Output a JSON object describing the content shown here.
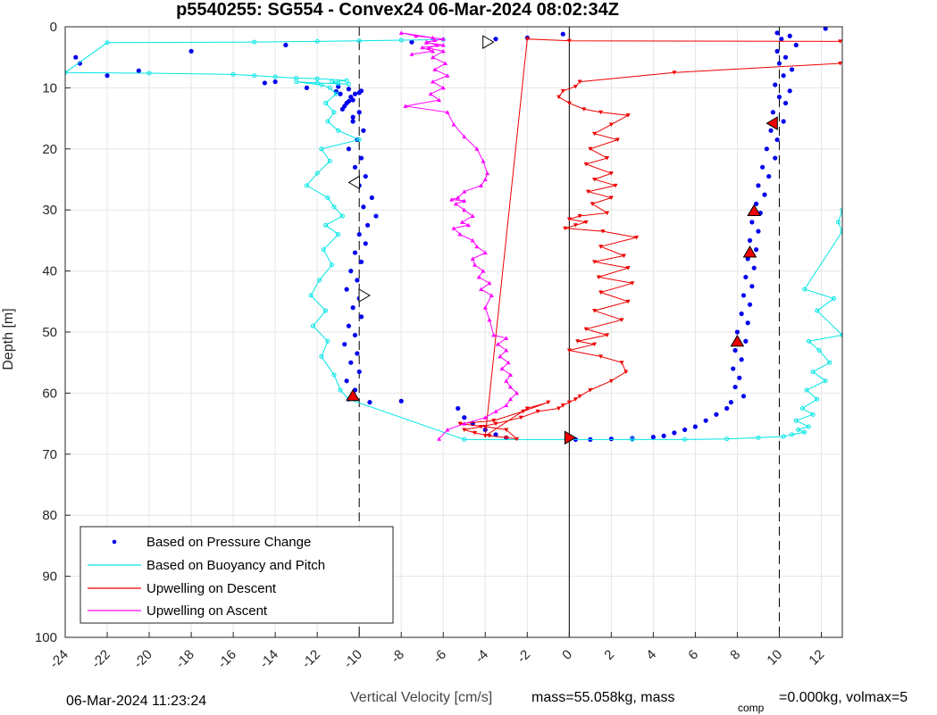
{
  "chart_data": {
    "type": "scatter",
    "title": "p5540255: SG554 - Convex24 06-Mar-2024 08:02:34Z",
    "xlabel": "Vertical Velocity [cm/s]",
    "ylabel": "Depth [m]",
    "xlim": [
      -24,
      13
    ],
    "ylim": [
      0,
      100
    ],
    "y_reversed": true,
    "grid": true,
    "legend_position": "bottom-left",
    "xticks": [
      -24,
      -22,
      -20,
      -18,
      -16,
      -14,
      -12,
      -10,
      -8,
      -6,
      -4,
      -2,
      0,
      2,
      4,
      6,
      8,
      10,
      12
    ],
    "xtick_labels": [
      "-24",
      "-22",
      "-20",
      "-18",
      "-16",
      "-14",
      "-12",
      "-10",
      "-8",
      "-6",
      "-4",
      "-2",
      "0",
      "2",
      "4",
      "6",
      "8",
      "10",
      "12"
    ],
    "yticks": [
      0,
      10,
      20,
      30,
      40,
      50,
      60,
      70,
      80,
      90,
      100
    ],
    "ytick_labels": [
      "0",
      "10",
      "20",
      "30",
      "40",
      "50",
      "60",
      "70",
      "80",
      "90",
      "100"
    ],
    "reference_lines": {
      "dashed_x": [
        -10,
        10
      ],
      "solid_x": [
        0
      ]
    },
    "colors": {
      "pressure": "#0000ee",
      "buoyancy": "#00e5e5",
      "descent": "#ee0000",
      "ascent": "#ff00ff"
    },
    "series": [
      {
        "name": "Based on Pressure Change",
        "style": "dots",
        "x": [
          12.2,
          9.9,
          10.5,
          10.1,
          10.8,
          9.9,
          10.3,
          10.0,
          10.6,
          10.2,
          9.8,
          10.5,
          10.0,
          10.3,
          9.7,
          10.2,
          9.6,
          9.9,
          9.4,
          9.8,
          9.2,
          9.5,
          9.0,
          9.3,
          8.9,
          9.1,
          8.7,
          9.0,
          8.6,
          8.9,
          8.5,
          8.8,
          8.4,
          8.7,
          8.3,
          8.6,
          8.2,
          8.5,
          8.0,
          8.4,
          7.9,
          8.2,
          7.8,
          8.1,
          7.9,
          8.3,
          7.7,
          7.5,
          7.0,
          6.5,
          6.0,
          5.5,
          5.0,
          4.5,
          4.0,
          3.0,
          2.0,
          1.0,
          0.3,
          -5.3,
          -5.0,
          -4.6,
          -4.0,
          -3.5,
          -3.0,
          -10.5,
          -10.2,
          -10.6,
          -10.0,
          -10.4,
          -10.1,
          -10.7,
          -10.2,
          -10.5,
          -9.9,
          -10.3,
          -10.0,
          -10.6,
          -10.1,
          -9.4,
          -9.8,
          -9.2,
          -9.6,
          -10.0,
          -9.7,
          -10.2,
          -9.9,
          -10.4,
          -10.0,
          -9.7,
          -10.2,
          -9.9,
          -10.5,
          -10.1,
          -9.8,
          -10.3,
          -10.0,
          -10.6,
          -10.2,
          -9.9,
          -10.4,
          -10.7,
          -10.3,
          -10.0,
          -10.5,
          -10.9,
          -11.1,
          -10.5,
          -10.8,
          -10.3,
          -11.0,
          -12.5,
          -14.0,
          -14.5,
          -18.0,
          -20.5,
          -23.3,
          -23.5,
          -22.0,
          -13.5,
          -7.5,
          -3.5,
          -2.0,
          -0.3,
          -9.5,
          -8.0
        ],
        "y": [
          0.3,
          1.0,
          1.5,
          2.0,
          3.0,
          4.0,
          5.0,
          6.0,
          7.0,
          8.0,
          9.5,
          10.5,
          11.5,
          12.5,
          14.0,
          15.5,
          17.0,
          18.5,
          20.0,
          21.5,
          23.0,
          24.5,
          26.0,
          27.5,
          29.0,
          30.5,
          32.0,
          33.5,
          35.0,
          36.5,
          38.0,
          39.5,
          41.0,
          42.5,
          44.0,
          45.5,
          47.0,
          48.5,
          50.0,
          51.5,
          53.0,
          54.5,
          56.0,
          57.5,
          59.0,
          60.5,
          61.5,
          62.5,
          63.5,
          64.5,
          65.5,
          66.0,
          66.5,
          67.0,
          67.2,
          67.4,
          67.5,
          67.6,
          67.6,
          62.5,
          64.0,
          65.0,
          66.0,
          66.8,
          67.3,
          61.0,
          59.5,
          58.0,
          56.5,
          55.0,
          53.5,
          52.0,
          50.5,
          49.0,
          47.5,
          46.0,
          44.5,
          43.0,
          41.5,
          28.0,
          29.5,
          31.0,
          32.5,
          34.0,
          35.5,
          37.0,
          38.5,
          40.0,
          26.0,
          24.5,
          23.0,
          21.5,
          20.0,
          18.5,
          17.0,
          15.5,
          14.0,
          12.5,
          11.0,
          10.5,
          11.5,
          13.0,
          12.0,
          10.8,
          10.2,
          11.0,
          10.6,
          12.2,
          13.5,
          14.8,
          9.8,
          10.0,
          9.0,
          9.2,
          4.0,
          7.2,
          6.0,
          5.0,
          8.0,
          3.0,
          2.5,
          2.0,
          1.8,
          1.2,
          61.5,
          61.3
        ]
      },
      {
        "name": "Based on Buoyancy and Pitch",
        "style": "line-circles",
        "x": [
          13.0,
          12.8,
          13.0,
          11.2,
          12.6,
          11.8,
          13.0,
          11.4,
          11.9,
          12.4,
          11.6,
          12.2,
          11.3,
          11.8,
          11.1,
          11.6,
          10.8,
          11.4,
          10.9,
          11.2,
          10.6,
          10.2,
          9.0,
          7.5,
          5.5,
          3.0,
          0.0,
          -5.0,
          -10.5,
          -10.9,
          -11.2,
          -11.8,
          -11.5,
          -12.2,
          -11.6,
          -12.3,
          -11.9,
          -11.3,
          -11.7,
          -11.0,
          -11.6,
          -10.8,
          -11.2,
          -11.5,
          -12.5,
          -12.0,
          -11.4,
          -11.8,
          -10.0,
          -11.0,
          -11.5,
          -11.2,
          -11.6,
          -11.1,
          -11.4,
          -11.8,
          -13.0,
          -12.0,
          -10.5,
          -11.0,
          -11.3,
          -10.6,
          -12.0,
          -13.0,
          -14.0,
          -15.0,
          -16.0,
          -20.0,
          -24.0,
          -22.0,
          -15.0,
          -12.0,
          -10.0,
          -8.0,
          -6.0
        ],
        "y": [
          30.0,
          32.0,
          33.5,
          43.0,
          44.5,
          46.5,
          50.5,
          51.5,
          53.0,
          55.0,
          56.5,
          58.0,
          59.5,
          61.0,
          62.5,
          63.5,
          64.5,
          65.5,
          66.0,
          66.4,
          66.8,
          67.1,
          67.3,
          67.5,
          67.6,
          67.6,
          67.6,
          67.6,
          61.0,
          59.5,
          57.0,
          54.0,
          51.5,
          49.0,
          46.5,
          44.0,
          41.5,
          39.0,
          36.5,
          34.0,
          32.5,
          31.0,
          29.5,
          28.0,
          26.0,
          24.0,
          22.0,
          20.0,
          18.5,
          17.0,
          15.5,
          14.0,
          12.5,
          11.0,
          10.0,
          9.5,
          9.0,
          9.2,
          9.4,
          9.3,
          9.0,
          8.8,
          8.5,
          8.4,
          8.2,
          8.0,
          7.8,
          7.6,
          7.5,
          2.6,
          2.5,
          2.4,
          2.3,
          2.2,
          2.1
        ]
      },
      {
        "name": "Upwelling on Descent",
        "style": "line-down-triangles",
        "x": [
          12.9,
          5.0,
          0.5,
          0.3,
          -0.3,
          -0.5,
          0.0,
          0.7,
          1.5,
          2.8,
          2.0,
          1.2,
          2.3,
          1.0,
          1.8,
          0.8,
          2.0,
          1.2,
          2.2,
          0.9,
          2.0,
          1.1,
          1.8,
          0.5,
          0.0,
          0.8,
          0.3,
          -0.2,
          1.6,
          3.2,
          1.5,
          2.6,
          1.2,
          2.8,
          1.4,
          3.0,
          1.5,
          2.8,
          1.2,
          2.5,
          0.8,
          1.8,
          0.4,
          1.2,
          0.0,
          1.5,
          2.5,
          2.7,
          2.0,
          1.0,
          0.5,
          0.3,
          0.0,
          -0.3,
          -0.5,
          -1.5,
          -2.3,
          -3.5,
          -4.2,
          -5.0,
          -4.5,
          -3.8,
          -3.0,
          -2.5,
          -3.0,
          -4.0,
          -5.2,
          -3.6,
          -2.2,
          -1.0,
          -2.0,
          -4.0,
          -2.0,
          0.0,
          12.9
        ],
        "y": [
          6.0,
          7.5,
          9.0,
          9.8,
          10.5,
          11.5,
          12.5,
          13.5,
          14.0,
          14.5,
          16.0,
          17.5,
          18.5,
          20.0,
          21.5,
          22.5,
          24.0,
          25.0,
          26.0,
          27.0,
          28.0,
          29.0,
          30.5,
          31.0,
          31.5,
          32.0,
          32.5,
          33.0,
          33.5,
          34.5,
          36.0,
          37.5,
          38.5,
          39.5,
          41.0,
          42.0,
          43.5,
          45.0,
          46.5,
          48.0,
          49.5,
          50.5,
          51.5,
          52.0,
          53.0,
          54.0,
          55.0,
          56.5,
          58.0,
          59.5,
          60.5,
          61.0,
          61.5,
          62.0,
          62.5,
          63.0,
          64.0,
          65.0,
          65.5,
          66.0,
          66.5,
          67.0,
          67.3,
          67.5,
          66.0,
          65.5,
          65.0,
          64.5,
          63.0,
          61.5,
          62.5,
          67.0,
          2.0,
          2.3,
          2.4
        ]
      },
      {
        "name": "Upwelling on Ascent",
        "style": "line-up-triangles",
        "x": [
          -6.2,
          -5.8,
          -5.0,
          -4.0,
          -3.5,
          -3.0,
          -2.8,
          -2.5,
          -2.8,
          -3.0,
          -2.8,
          -3.2,
          -2.9,
          -3.3,
          -3.0,
          -3.4,
          -3.0,
          -3.6,
          -3.8,
          -4.0,
          -3.7,
          -4.2,
          -3.8,
          -4.3,
          -4.1,
          -4.5,
          -4.6,
          -4.0,
          -4.4,
          -4.6,
          -5.2,
          -5.5,
          -4.8,
          -5.1,
          -4.6,
          -5.0,
          -5.4,
          -5.0,
          -5.6,
          -5.3,
          -5.0,
          -4.2,
          -4.0,
          -3.9,
          -4.1,
          -4.4,
          -5.0,
          -5.5,
          -5.8,
          -7.8,
          -6.2,
          -6.6,
          -6.0,
          -6.5,
          -5.8,
          -6.4,
          -5.9,
          -6.5,
          -6.0,
          -6.7,
          -6.3,
          -6.8,
          -6.0,
          -7.3,
          -8.0,
          -6.5,
          -6.4,
          -6.8,
          -6.0,
          -7.0,
          -6.5,
          -7.5
        ],
        "y": [
          67.5,
          66.0,
          65.0,
          64.0,
          63.0,
          62.0,
          61.0,
          60.0,
          59.0,
          58.0,
          57.0,
          56.0,
          55.0,
          54.0,
          53.0,
          52.0,
          51.0,
          50.5,
          48.0,
          46.0,
          44.0,
          43.0,
          42.0,
          41.0,
          40.0,
          39.0,
          38.0,
          37.0,
          36.0,
          35.0,
          34.0,
          33.0,
          32.5,
          32.0,
          31.0,
          30.0,
          29.0,
          28.5,
          28.3,
          28.0,
          27.0,
          26.0,
          25.0,
          24.0,
          22.0,
          20.0,
          18.0,
          16.0,
          14.0,
          13.0,
          12.0,
          11.0,
          10.0,
          9.0,
          8.0,
          7.0,
          6.0,
          5.0,
          4.0,
          3.5,
          3.0,
          2.5,
          2.0,
          1.5,
          1.0,
          1.8,
          2.2,
          2.6,
          3.0,
          3.4,
          4.0,
          4.5
        ]
      }
    ],
    "markers": [
      {
        "shape": "triangle-up",
        "fill": "#ee0000",
        "x": -10.3,
        "y": 60.5
      },
      {
        "shape": "triangle-up",
        "fill": "#ee0000",
        "x": 8.0,
        "y": 51.6
      },
      {
        "shape": "triangle-up",
        "fill": "#ee0000",
        "x": 8.6,
        "y": 37.0
      },
      {
        "shape": "triangle-up",
        "fill": "#ee0000",
        "x": 8.8,
        "y": 30.2
      },
      {
        "shape": "triangle-left",
        "fill": "#ee0000",
        "x": 9.7,
        "y": 15.8
      },
      {
        "shape": "triangle-right",
        "fill": "#ee0000",
        "x": 0.0,
        "y": 67.3
      },
      {
        "shape": "triangle-left",
        "fill": "#ffffff",
        "x": -10.2,
        "y": 25.5
      },
      {
        "shape": "triangle-right",
        "fill": "#ffffff",
        "x": -9.8,
        "y": 44.0
      },
      {
        "shape": "triangle-right",
        "fill": "#ffffff",
        "x": -3.9,
        "y": 2.5
      }
    ]
  },
  "footer": {
    "timestamp": "06-Mar-2024 11:23:24",
    "xlabel_prefix": "Vertical Velocity [cm/s]",
    "mass_text": "mass=55.058kg, mass",
    "subscript": "comp",
    "rest_text": "=0.000kg, volmax=5"
  }
}
